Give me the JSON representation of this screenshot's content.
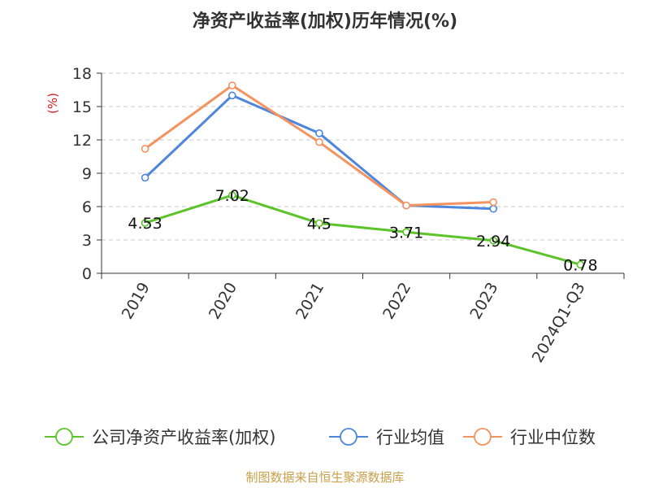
{
  "chart_data": {
    "type": "line",
    "title": "净资产收益率(加权)历年情况(%)",
    "ylabel": "(%)",
    "xlabel": "",
    "categories": [
      "2019",
      "2020",
      "2021",
      "2022",
      "2023",
      "2024Q1-Q3"
    ],
    "ylim": [
      0,
      18
    ],
    "yticks": [
      0,
      3,
      6,
      9,
      12,
      15,
      18
    ],
    "grid": true,
    "legend_position": "bottom",
    "series": [
      {
        "name": "公司净资产收益率(加权)",
        "color": "#5dc32a",
        "values": [
          4.53,
          7.02,
          4.5,
          3.71,
          2.94,
          0.78
        ],
        "labels": [
          "4.53",
          "7.02",
          "4.5",
          "3.71",
          "2.94",
          "0.78"
        ]
      },
      {
        "name": "行业均值",
        "color": "#4e86dc",
        "values": [
          8.6,
          16.0,
          12.6,
          6.1,
          5.8,
          null
        ]
      },
      {
        "name": "行业中位数",
        "color": "#f4935f",
        "values": [
          11.2,
          16.9,
          11.8,
          6.1,
          6.4,
          null
        ]
      }
    ]
  },
  "source": "制图数据来自恒生聚源数据库"
}
